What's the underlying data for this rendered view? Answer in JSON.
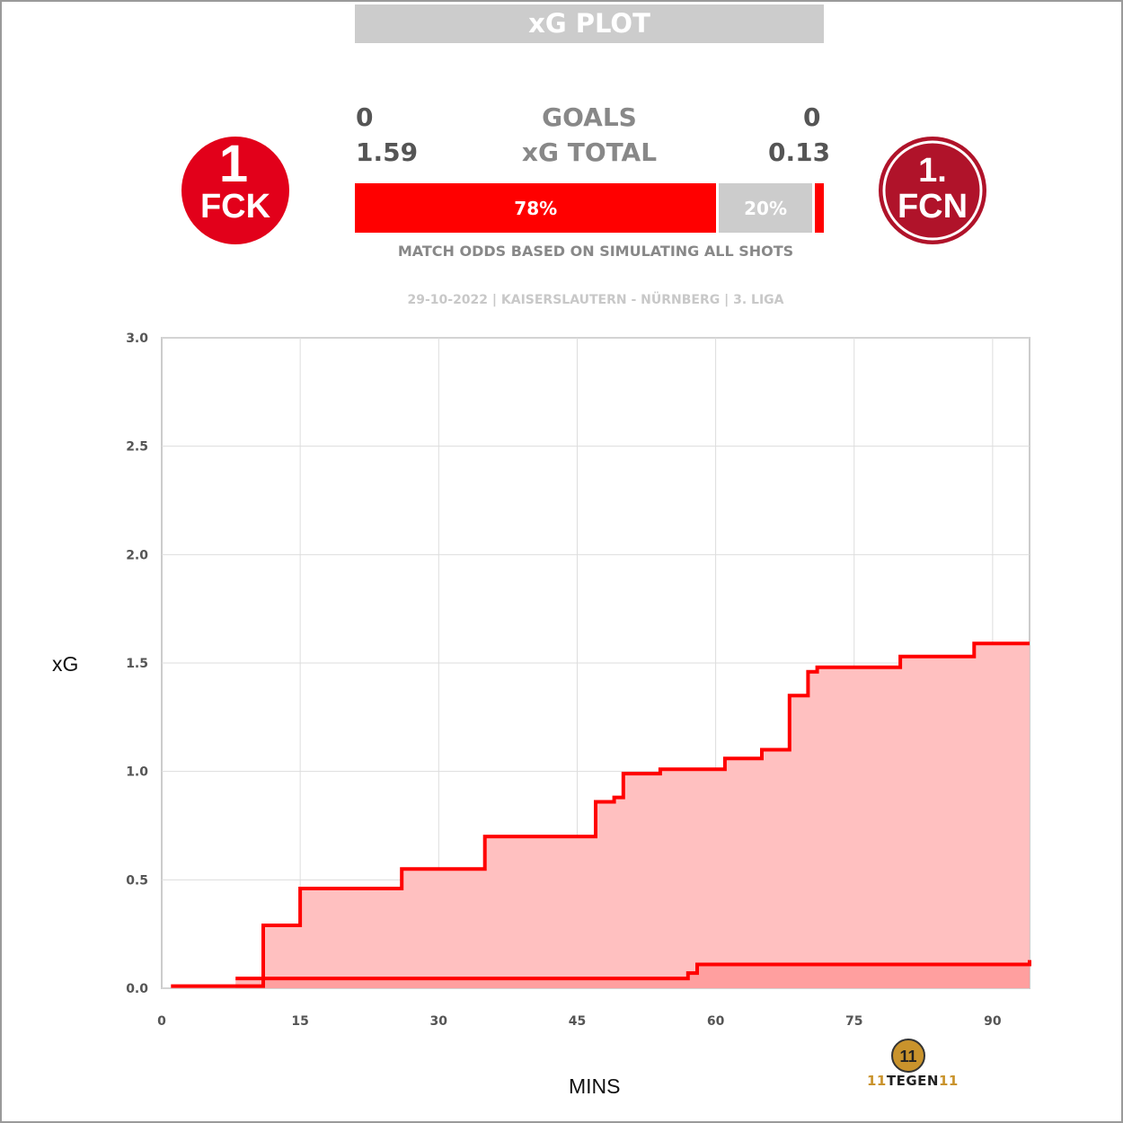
{
  "header": {
    "title": "xG PLOT"
  },
  "teams": {
    "home": {
      "goals": "0",
      "xg_total": "1.59",
      "crest_text_top": "1",
      "crest_text_bottom": "FCK",
      "color": "#e2001a"
    },
    "away": {
      "goals": "0",
      "xg_total": "0.13",
      "crest_text_top": "1.",
      "crest_text_bottom": "FCN",
      "color": "#b0132a"
    }
  },
  "labels": {
    "goals": "GOALS",
    "xg_total": "xG TOTAL"
  },
  "odds": {
    "home_win_pct": 78,
    "draw_pct": 20,
    "away_win_pct": 2,
    "home_label": "78%",
    "draw_label": "20%",
    "note": "MATCH ODDS BASED ON SIMULATING ALL SHOTS"
  },
  "match_info": "29-10-2022 | KAISERSLAUTERN - NÜRNBERG | 3. LIGA",
  "colors": {
    "accent": "#ff0000",
    "home_fill": "#ffc0c0",
    "away_fill": "#ff8888",
    "draw_grey": "#cccccc",
    "grid": "#dddddd"
  },
  "branding": {
    "logo_text_a": "11",
    "logo_text_b": "TEGEN",
    "logo_text_c": "11"
  },
  "chart_data": {
    "type": "area",
    "xlabel": "MINS",
    "ylabel": "xG",
    "xlim": [
      0,
      94
    ],
    "ylim": [
      0,
      3
    ],
    "xticks": [
      0,
      15,
      30,
      45,
      60,
      75,
      90
    ],
    "yticks": [
      "0.0",
      "0.5",
      "1.0",
      "1.5",
      "2.0",
      "2.5",
      "3.0"
    ],
    "grid": true,
    "step": true,
    "series": [
      {
        "team": "home",
        "x": [
          1,
          8,
          11,
          15,
          26,
          35,
          47,
          49,
          50,
          54,
          61,
          65,
          68,
          70,
          71,
          80,
          88,
          94
        ],
        "y": [
          0.01,
          0.01,
          0.29,
          0.46,
          0.55,
          0.7,
          0.86,
          0.88,
          0.99,
          1.01,
          1.06,
          1.1,
          1.35,
          1.46,
          1.48,
          1.53,
          1.59,
          1.59
        ]
      },
      {
        "team": "away",
        "x": [
          8,
          10,
          57,
          58,
          94
        ],
        "y": [
          0.045,
          0.045,
          0.07,
          0.11,
          0.13
        ]
      }
    ]
  }
}
